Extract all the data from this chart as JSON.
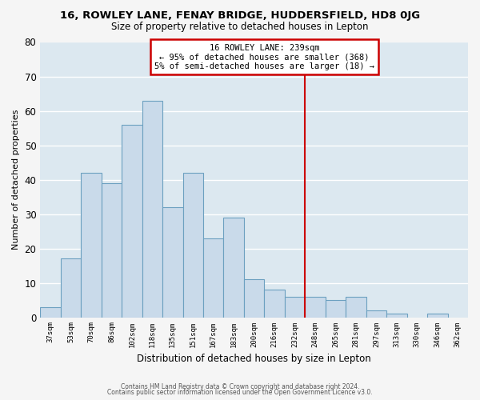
{
  "title": "16, ROWLEY LANE, FENAY BRIDGE, HUDDERSFIELD, HD8 0JG",
  "subtitle": "Size of property relative to detached houses in Lepton",
  "xlabel": "Distribution of detached houses by size in Lepton",
  "ylabel": "Number of detached properties",
  "bar_labels": [
    "37sqm",
    "53sqm",
    "70sqm",
    "86sqm",
    "102sqm",
    "118sqm",
    "135sqm",
    "151sqm",
    "167sqm",
    "183sqm",
    "200sqm",
    "216sqm",
    "232sqm",
    "248sqm",
    "265sqm",
    "281sqm",
    "297sqm",
    "313sqm",
    "330sqm",
    "346sqm",
    "362sqm"
  ],
  "bar_heights": [
    3,
    17,
    42,
    39,
    56,
    63,
    32,
    42,
    23,
    29,
    11,
    8,
    6,
    6,
    5,
    6,
    2,
    1,
    0,
    1,
    0
  ],
  "bar_color": "#c9daea",
  "bar_edge_color": "#6ca0c0",
  "vline_x_index": 12.5,
  "vline_color": "#cc0000",
  "annotation_title": "16 ROWLEY LANE: 239sqm",
  "annotation_line2": "← 95% of detached houses are smaller (368)",
  "annotation_line3": "5% of semi-detached houses are larger (18) →",
  "annotation_box_color": "#ffffff",
  "annotation_box_edge": "#cc0000",
  "ylim": [
    0,
    80
  ],
  "yticks": [
    0,
    10,
    20,
    30,
    40,
    50,
    60,
    70,
    80
  ],
  "footer_line1": "Contains HM Land Registry data © Crown copyright and database right 2024.",
  "footer_line2": "Contains public sector information licensed under the Open Government Licence v3.0.",
  "plot_bg_color": "#dce8f0",
  "fig_bg_color": "#f5f5f5",
  "grid_color": "#ffffff"
}
